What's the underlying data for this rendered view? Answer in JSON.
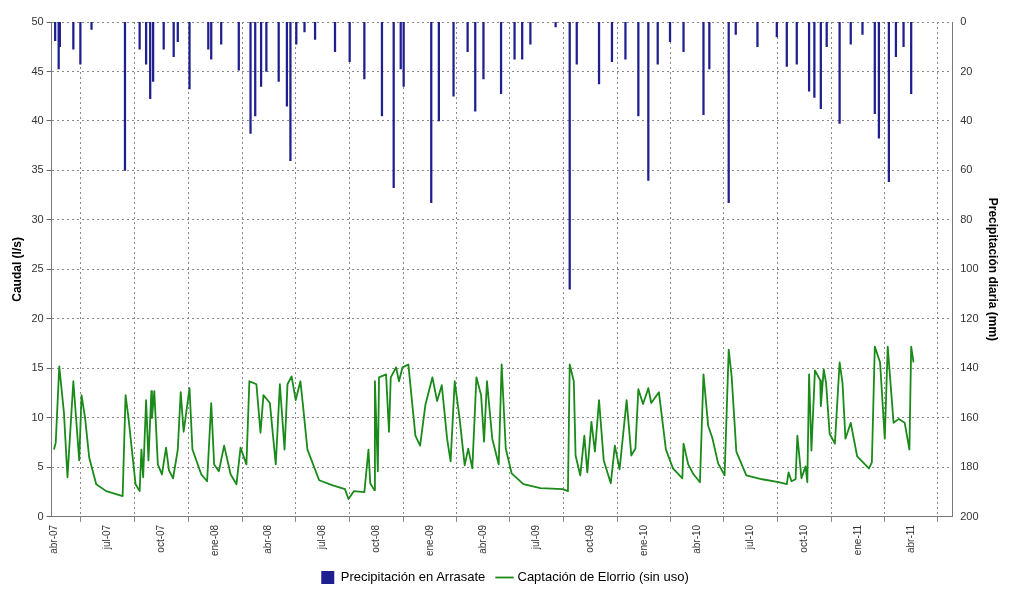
{
  "chart_data": {
    "type": "line",
    "ylabel": "Caudal (l/s)",
    "y2label": "Precipitación diaria (mm)",
    "xlim": [
      "2007-03-28",
      "2011-06-10"
    ],
    "xticks": [
      {
        "value": "2007-04-01",
        "label": "abr-07"
      },
      {
        "value": "2007-07-01",
        "label": "jul-07"
      },
      {
        "value": "2007-10-01",
        "label": "oct-07"
      },
      {
        "value": "2008-01-01",
        "label": "ene-08"
      },
      {
        "value": "2008-04-01",
        "label": "abr-08"
      },
      {
        "value": "2008-07-01",
        "label": "jul-08"
      },
      {
        "value": "2008-10-01",
        "label": "oct-08"
      },
      {
        "value": "2009-01-01",
        "label": "ene-09"
      },
      {
        "value": "2009-04-01",
        "label": "abr-09"
      },
      {
        "value": "2009-07-01",
        "label": "jul-09"
      },
      {
        "value": "2009-10-01",
        "label": "oct-09"
      },
      {
        "value": "2010-01-01",
        "label": "ene-10"
      },
      {
        "value": "2010-04-01",
        "label": "abr-10"
      },
      {
        "value": "2010-07-01",
        "label": "jul-10"
      },
      {
        "value": "2010-10-01",
        "label": "oct-10"
      },
      {
        "value": "2011-01-01",
        "label": "ene-11"
      },
      {
        "value": "2011-04-01",
        "label": "abr-11"
      }
    ],
    "ylim": [
      0,
      50
    ],
    "yticks": [
      0,
      5,
      10,
      15,
      20,
      25,
      30,
      35,
      40,
      45,
      50
    ],
    "y2lim": [
      200,
      0
    ],
    "y2ticks": [
      0,
      20,
      40,
      60,
      80,
      100,
      120,
      140,
      160,
      180,
      200
    ],
    "grid": true,
    "legend": "bottom",
    "series": [
      {
        "name": "Precipitación en Arrasate",
        "type": "bar",
        "axis": "y2",
        "color": "#1f1f8f",
        "x": [
          "2007-04-03",
          "2007-04-09",
          "2007-04-11",
          "2007-05-04",
          "2007-05-16",
          "2007-06-04",
          "2007-07-31",
          "2007-08-25",
          "2007-09-05",
          "2007-09-12",
          "2007-09-17",
          "2007-10-05",
          "2007-10-22",
          "2007-10-29",
          "2007-11-18",
          "2007-12-20",
          "2007-12-25",
          "2008-01-11",
          "2008-02-10",
          "2008-03-01",
          "2008-03-09",
          "2008-03-19",
          "2008-03-28",
          "2008-04-18",
          "2008-05-02",
          "2008-05-08",
          "2008-05-18",
          "2008-06-01",
          "2008-06-19",
          "2008-07-23",
          "2008-08-17",
          "2008-09-11",
          "2008-10-11",
          "2008-10-31",
          "2008-11-12",
          "2008-11-17",
          "2009-01-03",
          "2009-01-16",
          "2009-02-10",
          "2009-03-06",
          "2009-03-19",
          "2009-04-02",
          "2009-05-02",
          "2009-05-25",
          "2009-06-07",
          "2009-06-21",
          "2009-08-03",
          "2009-08-27",
          "2009-09-08",
          "2009-10-16",
          "2009-11-07",
          "2009-11-30",
          "2009-12-22",
          "2010-01-08",
          "2010-01-24",
          "2010-02-14",
          "2010-03-09",
          "2010-04-12",
          "2010-04-22",
          "2010-05-25",
          "2010-06-06",
          "2010-07-13",
          "2010-08-15",
          "2010-09-01",
          "2010-09-18",
          "2010-10-09",
          "2010-10-18",
          "2010-10-29",
          "2010-11-08",
          "2010-11-30",
          "2010-12-19",
          "2011-01-08",
          "2011-01-29",
          "2011-02-05",
          "2011-02-22",
          "2011-03-06",
          "2011-03-19",
          "2011-04-01"
        ],
        "values": [
          7.5,
          19,
          10,
          11,
          17,
          3,
          60,
          11,
          17,
          31,
          24,
          11,
          14,
          8,
          27,
          11,
          15,
          9,
          19.5,
          45,
          38,
          26,
          20,
          24,
          34,
          56,
          9,
          4,
          7,
          12,
          16,
          23,
          38,
          67,
          19,
          26,
          73,
          40,
          30,
          12,
          36,
          23,
          29,
          15,
          15,
          9,
          2,
          108,
          17,
          25,
          16,
          15,
          38,
          64,
          17,
          8,
          12,
          37.5,
          19,
          73,
          5,
          10,
          6,
          18,
          17,
          28,
          30.5,
          35,
          10,
          41,
          9,
          5,
          37,
          47,
          64.5,
          14,
          10,
          29
        ]
      },
      {
        "name": "Captación de Elorrio (sin uso)",
        "color": "#1a8a1a",
        "x": [
          "2007-04-01",
          "2007-04-04",
          "2007-04-10",
          "2007-04-18",
          "2007-04-24",
          "2007-05-04",
          "2007-05-14",
          "2007-05-18",
          "2007-05-24",
          "2007-05-31",
          "2007-06-12",
          "2007-06-29",
          "2007-07-27",
          "2007-08-01",
          "2007-08-06",
          "2007-08-18",
          "2007-08-25",
          "2007-08-28",
          "2007-08-31",
          "2007-09-05",
          "2007-09-09",
          "2007-09-14",
          "2007-09-15",
          "2007-09-19",
          "2007-09-25",
          "2007-10-02",
          "2007-10-09",
          "2007-10-14",
          "2007-10-21",
          "2007-10-29",
          "2007-11-03",
          "2007-11-08",
          "2007-11-18",
          "2007-11-23",
          "2007-12-08",
          "2007-12-18",
          "2007-12-25",
          "2007-12-30",
          "2008-01-07",
          "2008-01-16",
          "2008-01-27",
          "2008-02-06",
          "2008-02-13",
          "2008-02-23",
          "2008-02-28",
          "2008-03-11",
          "2008-03-18",
          "2008-03-23",
          "2008-04-03",
          "2008-04-13",
          "2008-04-20",
          "2008-04-28",
          "2008-05-03",
          "2008-05-10",
          "2008-05-17",
          "2008-05-25",
          "2008-05-29",
          "2008-06-06",
          "2008-06-26",
          "2008-07-18",
          "2008-08-09",
          "2008-08-15",
          "2008-08-24",
          "2008-09-11",
          "2008-09-18",
          "2008-09-21",
          "2008-09-28",
          "2008-09-29",
          "2008-10-04",
          "2008-10-06",
          "2008-10-18",
          "2008-10-23",
          "2008-10-26",
          "2008-11-04",
          "2008-11-09",
          "2008-11-15",
          "2008-11-25",
          "2008-12-07",
          "2008-12-15",
          "2008-12-24",
          "2009-01-05",
          "2009-01-13",
          "2009-01-21",
          "2009-01-30",
          "2009-02-05",
          "2009-02-12",
          "2009-02-20",
          "2009-03-01",
          "2009-03-07",
          "2009-03-14",
          "2009-03-21",
          "2009-03-29",
          "2009-04-03",
          "2009-04-08",
          "2009-04-17",
          "2009-04-28",
          "2009-05-03",
          "2009-05-10",
          "2009-05-20",
          "2009-06-09",
          "2009-07-08",
          "2009-08-15",
          "2009-08-24",
          "2009-08-27",
          "2009-09-03",
          "2009-09-06",
          "2009-09-14",
          "2009-09-21",
          "2009-09-26",
          "2009-10-03",
          "2009-10-09",
          "2009-10-16",
          "2009-10-24",
          "2009-11-05",
          "2009-11-12",
          "2009-11-20",
          "2009-12-02",
          "2009-12-10",
          "2009-12-17",
          "2009-12-22",
          "2009-12-30",
          "2010-01-08",
          "2010-01-13",
          "2010-01-26",
          "2010-02-07",
          "2010-02-19",
          "2010-03-07",
          "2010-03-09",
          "2010-03-17",
          "2010-03-26",
          "2010-04-06",
          "2010-04-12",
          "2010-04-20",
          "2010-04-27",
          "2010-05-07",
          "2010-05-18",
          "2010-05-25",
          "2010-05-30",
          "2010-06-07",
          "2010-06-24",
          "2010-07-21",
          "2010-08-18",
          "2010-09-01",
          "2010-09-04",
          "2010-09-09",
          "2010-09-16",
          "2010-09-19",
          "2010-09-26",
          "2010-10-03",
          "2010-10-06",
          "2010-10-09",
          "2010-10-13",
          "2010-10-19",
          "2010-10-28",
          "2010-10-29",
          "2010-11-03",
          "2010-11-07",
          "2010-11-13",
          "2010-11-22",
          "2010-11-30",
          "2010-12-05",
          "2010-12-10",
          "2010-12-19",
          "2010-12-30",
          "2011-01-19",
          "2011-01-24",
          "2011-01-29",
          "2011-02-07",
          "2011-02-15",
          "2011-02-20",
          "2011-03-02",
          "2011-03-11",
          "2011-03-21",
          "2011-03-29",
          "2011-04-01",
          "2011-04-05"
        ],
        "values": [
          6.8,
          7.5,
          15.2,
          10.5,
          4.0,
          13.7,
          5.7,
          12.3,
          10.0,
          6.0,
          3.3,
          2.6,
          2.1,
          12.3,
          10.0,
          3.3,
          2.6,
          6.8,
          4.0,
          11.8,
          5.7,
          12.7,
          10.0,
          12.7,
          5.3,
          4.3,
          7.0,
          4.7,
          3.9,
          6.8,
          12.6,
          8.6,
          13.0,
          6.8,
          4.3,
          3.6,
          11.5,
          5.3,
          4.6,
          7.2,
          4.3,
          3.3,
          7.0,
          5.3,
          13.7,
          13.4,
          8.5,
          12.3,
          11.5,
          5.3,
          13.4,
          6.8,
          13.4,
          14.2,
          11.8,
          13.7,
          11.5,
          6.8,
          3.7,
          3.2,
          2.8,
          1.8,
          2.6,
          2.5,
          6.8,
          3.4,
          2.7,
          13.7,
          4.6,
          14.1,
          14.4,
          8.6,
          14.1,
          15.1,
          13.7,
          15.1,
          15.4,
          8.2,
          7.2,
          11.3,
          14.1,
          11.7,
          13.3,
          7.9,
          5.6,
          13.7,
          10.1,
          5.2,
          6.9,
          4.9,
          14.1,
          12.3,
          7.6,
          13.7,
          7.9,
          5.3,
          15.4,
          6.9,
          4.4,
          3.3,
          2.9,
          2.8,
          2.6,
          15.4,
          13.7,
          6.2,
          4.2,
          8.2,
          4.5,
          9.6,
          6.6,
          11.8,
          5.7,
          3.4,
          7.2,
          4.8,
          11.8,
          6.2,
          6.9,
          12.9,
          11.4,
          13.0,
          11.5,
          12.6,
          6.8,
          4.9,
          3.9,
          7.4,
          5.3,
          4.3,
          3.5,
          14.4,
          9.2,
          8.0,
          5.4,
          4.2,
          16.9,
          14.2,
          6.6,
          4.2,
          3.8,
          3.5,
          3.3,
          4.5,
          3.6,
          3.8,
          8.2,
          3.9,
          5.1,
          3.5,
          14.4,
          6.7,
          14.8,
          13.8,
          11.2,
          14.9,
          13.5,
          8.4,
          7.4,
          15.6,
          13.5,
          7.9,
          9.5,
          6.1,
          4.9,
          5.5,
          17.2,
          15.6,
          7.9,
          17.2,
          9.5,
          9.9,
          9.5,
          6.8,
          17.2,
          15.6
        ]
      }
    ]
  }
}
